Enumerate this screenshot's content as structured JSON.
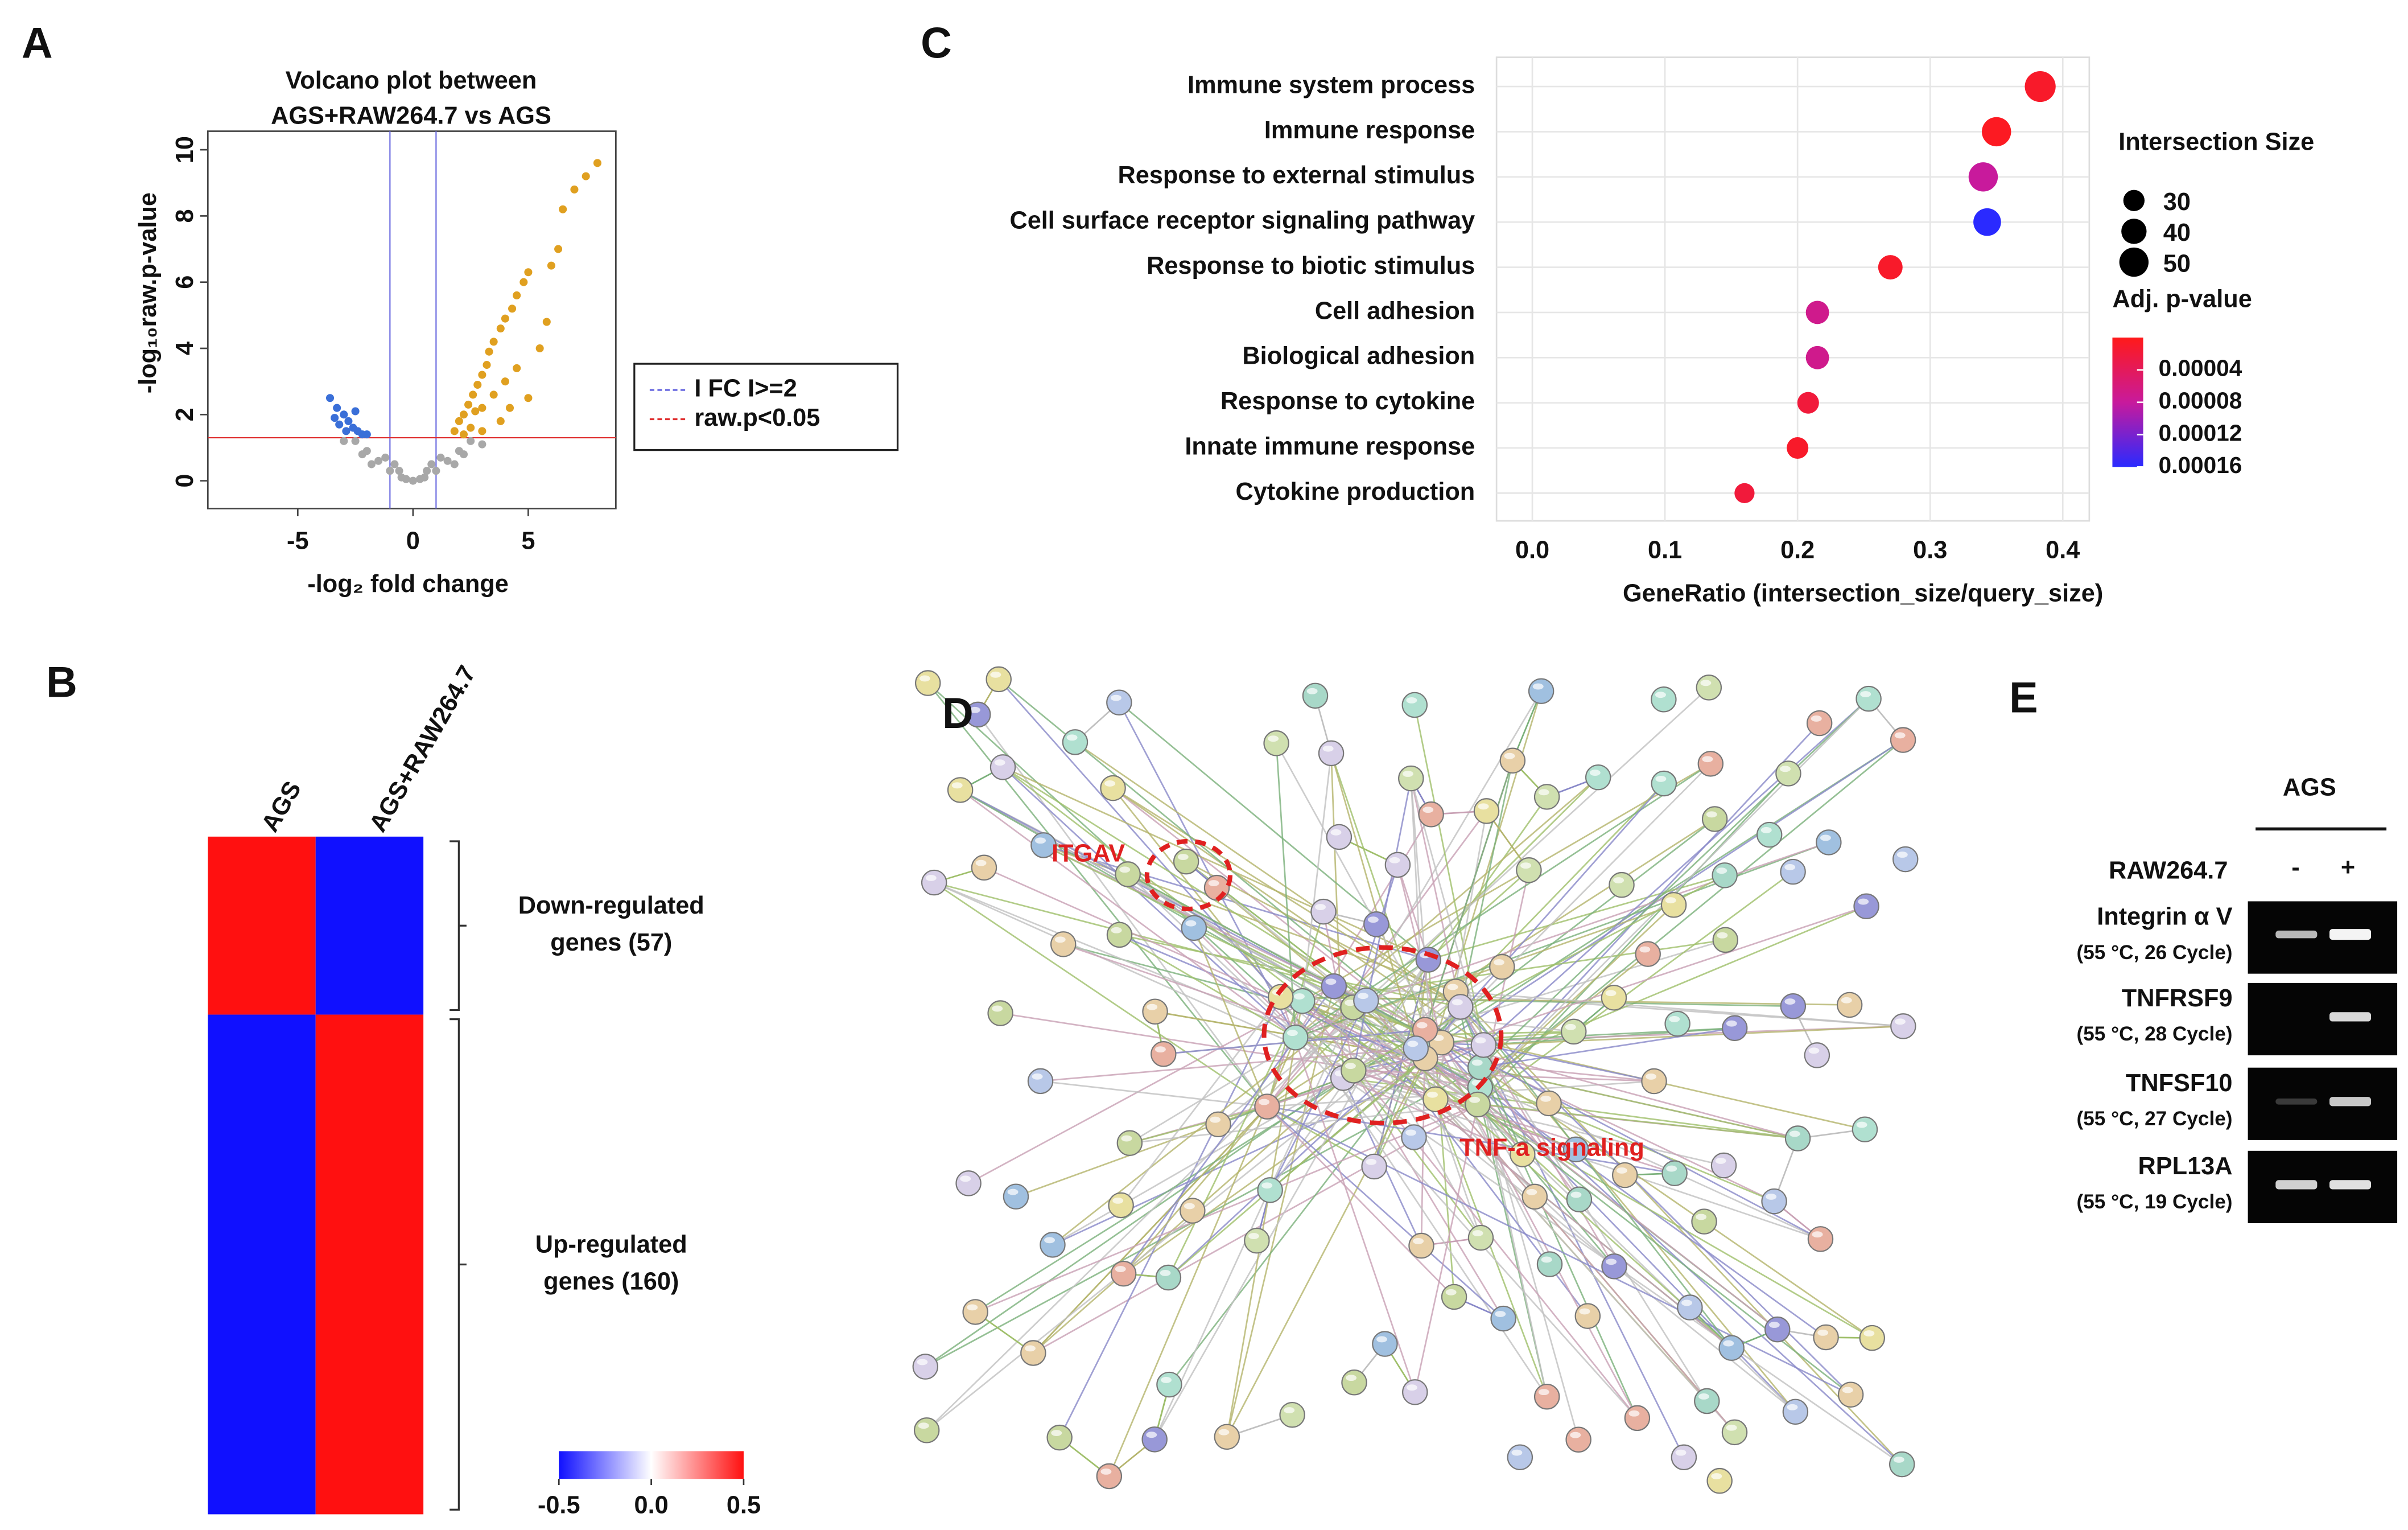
{
  "chart_data": [
    {
      "type": "scatter",
      "label": "A",
      "title": [
        "Volcano plot between",
        "AGS+RAW264.7  vs  AGS"
      ],
      "xlabel": "-log₂ fold change",
      "ylabel": "-log₁₀raw.p-value",
      "xlim": [
        -8.9,
        8.8
      ],
      "ylim": [
        -0.84,
        10.56
      ],
      "xticks": [
        -5,
        0,
        5
      ],
      "yticks": [
        0,
        2,
        4,
        6,
        8,
        10
      ],
      "series": [
        {
          "color": "#a8a8a8",
          "x": [
            -2.5,
            -2,
            -1.5,
            -1,
            -0.5,
            0,
            0.5,
            1,
            1.5,
            2,
            2.5,
            -1.8,
            1.8,
            -1.2,
            1.2,
            0.3,
            -0.3,
            3,
            -3,
            0.8,
            -0.8,
            -2.2,
            2.2,
            -0.6,
            0.6
          ],
          "values": [
            1.2,
            0.9,
            0.6,
            0.3,
            0.1,
            0,
            0.1,
            0.3,
            0.6,
            0.9,
            1.2,
            0.5,
            0.5,
            0.7,
            0.7,
            0.05,
            0.05,
            1.1,
            1.2,
            0.5,
            0.5,
            0.8,
            0.8,
            0.3,
            0.3
          ]
        },
        {
          "color": "#3a6fd8",
          "x": [
            -3.6,
            -3.3,
            -3,
            -2.8,
            -2.6,
            -2.4,
            -2.2,
            -3.2,
            -2.9,
            -2.5,
            -2,
            -3.4
          ],
          "values": [
            2.5,
            2.2,
            2,
            1.8,
            1.6,
            1.5,
            1.4,
            1.7,
            1.5,
            2.1,
            1.4,
            1.9
          ]
        },
        {
          "color": "#e0a020",
          "x": [
            1.8,
            2,
            2.2,
            2.4,
            2.6,
            2.8,
            3,
            3.2,
            3.3,
            3.5,
            3.8,
            4,
            4.3,
            4.5,
            4.8,
            5,
            5.5,
            5.8,
            6,
            6.3,
            6.5,
            7,
            7.5,
            8,
            2.5,
            3,
            3.5,
            4,
            4.5,
            2.2,
            3.8,
            4.2,
            5,
            3,
            2.7
          ],
          "values": [
            1.5,
            1.8,
            2,
            2.3,
            2.6,
            2.9,
            3.2,
            3.5,
            3.9,
            4.2,
            4.6,
            4.9,
            5.2,
            5.6,
            6,
            6.3,
            4,
            4.8,
            6.5,
            7,
            8.2,
            8.8,
            9.2,
            9.6,
            1.6,
            2.2,
            2.6,
            3,
            3.4,
            1.4,
            1.8,
            2.2,
            2.5,
            1.5,
            2.1
          ]
        }
      ],
      "threshold_lines": [
        {
          "name": "I FC I>=2",
          "color": "#6a6ae0",
          "axis": "x",
          "values": [
            -1,
            1
          ]
        },
        {
          "name": "raw.p<0.05",
          "color": "#e03030",
          "axis": "y",
          "values": [
            1.3
          ]
        }
      ]
    },
    {
      "type": "heatmap",
      "label": "B",
      "columns": [
        "AGS",
        "AGS+RAW264.7"
      ],
      "rows": [
        {
          "label": [
            "Down-regulated",
            "genes (57)"
          ],
          "size": 57,
          "values": [
            0.5,
            -0.5
          ]
        },
        {
          "label": [
            "Up-regulated",
            "genes (160)"
          ],
          "size": 160,
          "values": [
            -0.5,
            0.5
          ]
        }
      ],
      "zlim": [
        -0.5,
        0.5
      ],
      "zticks": [
        -0.5,
        {
          "value": 0,
          "label": "0.0"
        },
        0.5
      ],
      "colors": [
        "#1010ff",
        "#ffffff",
        "#ff1010"
      ]
    },
    {
      "type": "dot",
      "label": "C",
      "categories": [
        "Immune system process",
        "Immune response",
        "Response to external stimulus",
        "Cell surface receptor signaling pathway",
        "Response to biotic stimulus",
        "Cell adhesion",
        "Biological adhesion",
        "Response to cytokine",
        "Innate immune response",
        "Cytokine production"
      ],
      "values": [
        0.383,
        0.35,
        0.34,
        0.343,
        0.27,
        0.215,
        0.215,
        0.208,
        0.2,
        0.16
      ],
      "sizes": [
        54,
        50,
        50,
        46,
        38,
        35,
        35,
        31,
        31,
        27
      ],
      "pvalues": [
        1e-05,
        5e-06,
        8e-05,
        0.00016,
        1e-05,
        7e-05,
        7e-05,
        2e-05,
        1e-05,
        2e-05
      ],
      "xlabel": "GeneRatio (intersection_size/query_size)",
      "xlim": [
        -0.027,
        0.42
      ],
      "xticks": [
        {
          "value": 0,
          "label": "0.0"
        },
        0.1,
        0.2,
        0.3,
        0.4
      ],
      "grid": true,
      "size_title": "Intersection Size",
      "size_ticks": [
        30,
        40,
        50
      ],
      "color_title": "Adj. p-value",
      "clim": [
        0,
        0.00016
      ],
      "cticks": [
        4e-05,
        8e-05,
        0.00012,
        0.00016
      ],
      "colors": [
        "#ff1a1a",
        "#c81a9c",
        "#2a2aff"
      ]
    }
  ],
  "network": {
    "label": "D",
    "annotations": [
      "ITGAV",
      "TNF-a signaling"
    ]
  },
  "gel": {
    "label": "E",
    "title": "AGS",
    "row_title": "RAW264.7",
    "lanes": [
      "-",
      "+"
    ],
    "rows": [
      {
        "gene": "Integrin α V",
        "condition": "(55 °C, 26 Cycle)"
      },
      {
        "gene": "TNFRSF9",
        "condition": "(55 °C, 28 Cycle)"
      },
      {
        "gene": "TNFSF10",
        "condition": "(55 °C, 27 Cycle)"
      },
      {
        "gene": "RPL13A",
        "condition": "(55 °C, 19 Cycle)"
      }
    ]
  }
}
